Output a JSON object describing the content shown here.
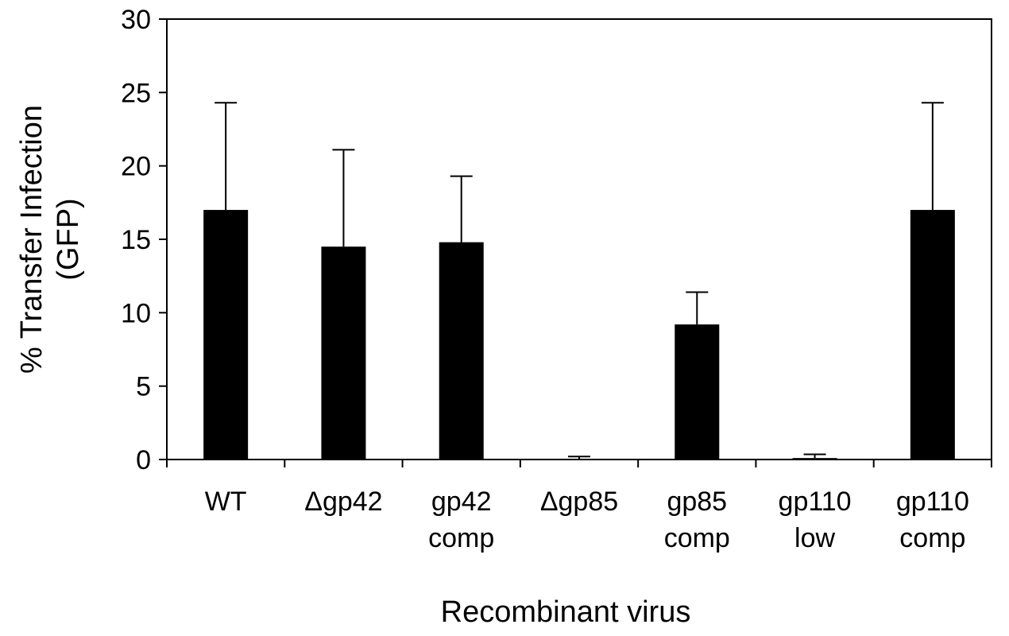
{
  "chart_data": {
    "type": "bar",
    "title": "",
    "xlabel": "Recombinant virus",
    "ylabel_lines": [
      "% Transfer Infection",
      "(GFP)"
    ],
    "categories": [
      [
        "WT"
      ],
      [
        "Δgp42"
      ],
      [
        "gp42",
        "comp"
      ],
      [
        "Δgp85"
      ],
      [
        "gp85",
        "comp"
      ],
      [
        "gp110",
        "low"
      ],
      [
        "gp110",
        "comp"
      ]
    ],
    "values": [
      17.0,
      14.5,
      14.8,
      0.0,
      9.2,
      0.1,
      17.0
    ],
    "errors": [
      7.3,
      6.6,
      4.5,
      0.2,
      2.2,
      0.25,
      7.3
    ],
    "ylim": [
      0,
      30
    ],
    "yticks": [
      0,
      5,
      10,
      15,
      20,
      25,
      30
    ],
    "grid": false,
    "bar_color": "#000000"
  }
}
